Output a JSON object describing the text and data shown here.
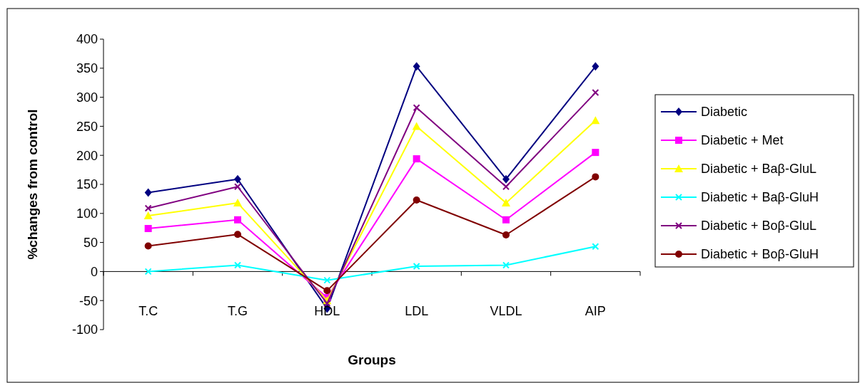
{
  "chart_data": {
    "type": "line",
    "xlabel": "Groups",
    "ylabel": "%changes from control",
    "categories": [
      "T.C",
      "T.G",
      "HDL",
      "LDL",
      "VLDL",
      "AIP"
    ],
    "ylim": [
      -100,
      400
    ],
    "yticks": [
      -100,
      -50,
      0,
      50,
      100,
      150,
      200,
      250,
      300,
      350,
      400
    ],
    "grid": false,
    "legend": "right",
    "series": [
      {
        "name": "Diabetic",
        "color": "#000080",
        "marker": "diamond",
        "values": [
          136,
          159,
          -64,
          353,
          159,
          353
        ]
      },
      {
        "name": "Diabetic + Met",
        "color": "#ff00ff",
        "marker": "square",
        "values": [
          74,
          89,
          -45,
          194,
          89,
          205
        ]
      },
      {
        "name": "Diabetic + Baβ-GluL",
        "color": "#ffff00",
        "marker": "triangle",
        "values": [
          96,
          118,
          -50,
          250,
          118,
          260
        ]
      },
      {
        "name": "Diabetic + Baβ-GluH",
        "color": "#00ffff",
        "marker": "cross",
        "values": [
          0,
          11,
          -15,
          9,
          11,
          43
        ]
      },
      {
        "name": "Diabetic + Boβ-GluL",
        "color": "#800080",
        "marker": "cross",
        "values": [
          109,
          146,
          -55,
          282,
          146,
          308
        ]
      },
      {
        "name": "Diabetic + Boβ-GluH",
        "color": "#800000",
        "marker": "circle",
        "values": [
          44,
          64,
          -33,
          123,
          63,
          163
        ]
      }
    ]
  }
}
